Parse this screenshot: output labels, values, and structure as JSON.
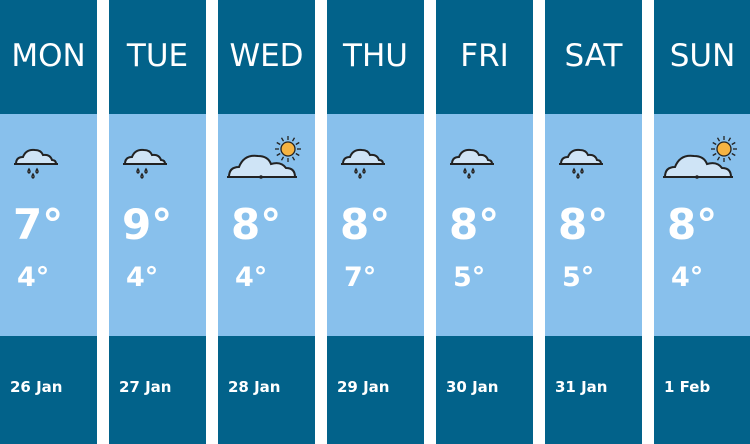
{
  "days": [
    {
      "day": "MON",
      "icon": "rain-cloud-icon",
      "high": "7°",
      "low": "4°",
      "date": "26 Jan"
    },
    {
      "day": "TUE",
      "icon": "rain-cloud-icon",
      "high": "9°",
      "low": "4°",
      "date": "27 Jan"
    },
    {
      "day": "WED",
      "icon": "sun-cloud-icon",
      "high": "8°",
      "low": "4°",
      "date": "28 Jan"
    },
    {
      "day": "THU",
      "icon": "rain-cloud-icon",
      "high": "8°",
      "low": "7°",
      "date": "29 Jan"
    },
    {
      "day": "FRI",
      "icon": "rain-cloud-icon",
      "high": "8°",
      "low": "5°",
      "date": "30 Jan"
    },
    {
      "day": "SAT",
      "icon": "rain-cloud-icon",
      "high": "8°",
      "low": "5°",
      "date": "31 Jan"
    },
    {
      "day": "SUN",
      "icon": "sun-cloud-icon",
      "high": "8°",
      "low": "4°",
      "date": "1 Feb"
    }
  ],
  "colors": {
    "header": "#02628a",
    "body": "#88c0ec",
    "sun": "#f5b342",
    "cloud": "#cfe4f6"
  }
}
